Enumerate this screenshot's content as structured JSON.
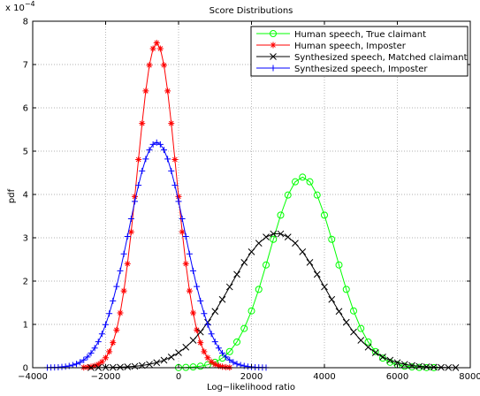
{
  "chart_data": {
    "type": "line",
    "title": "Score Distributions",
    "xlabel": "Log−likelihood ratio",
    "ylabel": "pdf",
    "y_exponent_label": "x 10",
    "y_exponent_power": "−4",
    "xlim": [
      -4000,
      8000
    ],
    "ylim": [
      0,
      8
    ],
    "x_ticks": [
      -4000,
      -2000,
      0,
      2000,
      4000,
      6000,
      8000
    ],
    "x_tick_labels": [
      "−4000",
      "−2000",
      "0",
      "2000",
      "4000",
      "6000",
      "8000"
    ],
    "y_ticks": [
      0,
      1,
      2,
      3,
      4,
      5,
      6,
      7,
      8
    ],
    "y_tick_labels": [
      "0",
      "1",
      "2",
      "3",
      "4",
      "5",
      "6",
      "7",
      "8"
    ],
    "grid": true,
    "legend_position": "top-right",
    "series": [
      {
        "name": "Human speech, True claimant",
        "color": "#00ff00",
        "marker": "circle",
        "mean": 3400,
        "sd": 900,
        "peak": 4.4,
        "x_start": 0,
        "x_end": 7000,
        "x_step": 200
      },
      {
        "name": "Human speech, Imposter",
        "color": "#ff0000",
        "marker": "star",
        "mean": -600,
        "sd": 530,
        "peak": 7.5,
        "x_start": -2600,
        "x_end": 1400,
        "x_step": 100
      },
      {
        "name": "Synthesized speech, Matched claimant",
        "color": "#000000",
        "marker": "x",
        "mean": 2700,
        "sd": 1290,
        "peak": 3.1,
        "x_start": -2400,
        "x_end": 7600,
        "x_step": 200
      },
      {
        "name": "Synthesized speech, Imposter",
        "color": "#0000ff",
        "marker": "plus",
        "mean": -600,
        "sd": 770,
        "peak": 5.2,
        "x_start": -3600,
        "x_end": 2400,
        "x_step": 100
      }
    ]
  }
}
